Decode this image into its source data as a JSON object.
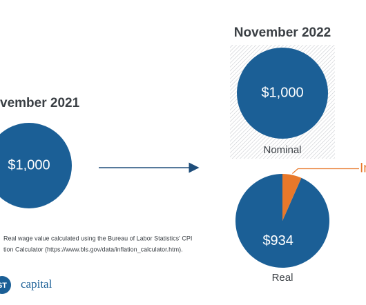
{
  "left": {
    "title": "vember 2021",
    "amount": "$1,000"
  },
  "nominal": {
    "title": "November 2022",
    "amount": "$1,000",
    "label": "Nominal"
  },
  "footnote": [
    "Real wage value calculated using the Bureau of Labor Statistics' CPI",
    "tion Calculator (https://www.bls.gov/data/inflation_calculator.htm)."
  ],
  "logo": {
    "mark": "ST",
    "name": "capital"
  },
  "chart_data": {
    "type": "pie",
    "title": "Real",
    "categories": [
      null,
      "In"
    ],
    "values": [
      934,
      66
    ],
    "value_labels": [
      "$934",
      null
    ],
    "colors": [
      "#1b5f96",
      "#e8782a"
    ]
  }
}
